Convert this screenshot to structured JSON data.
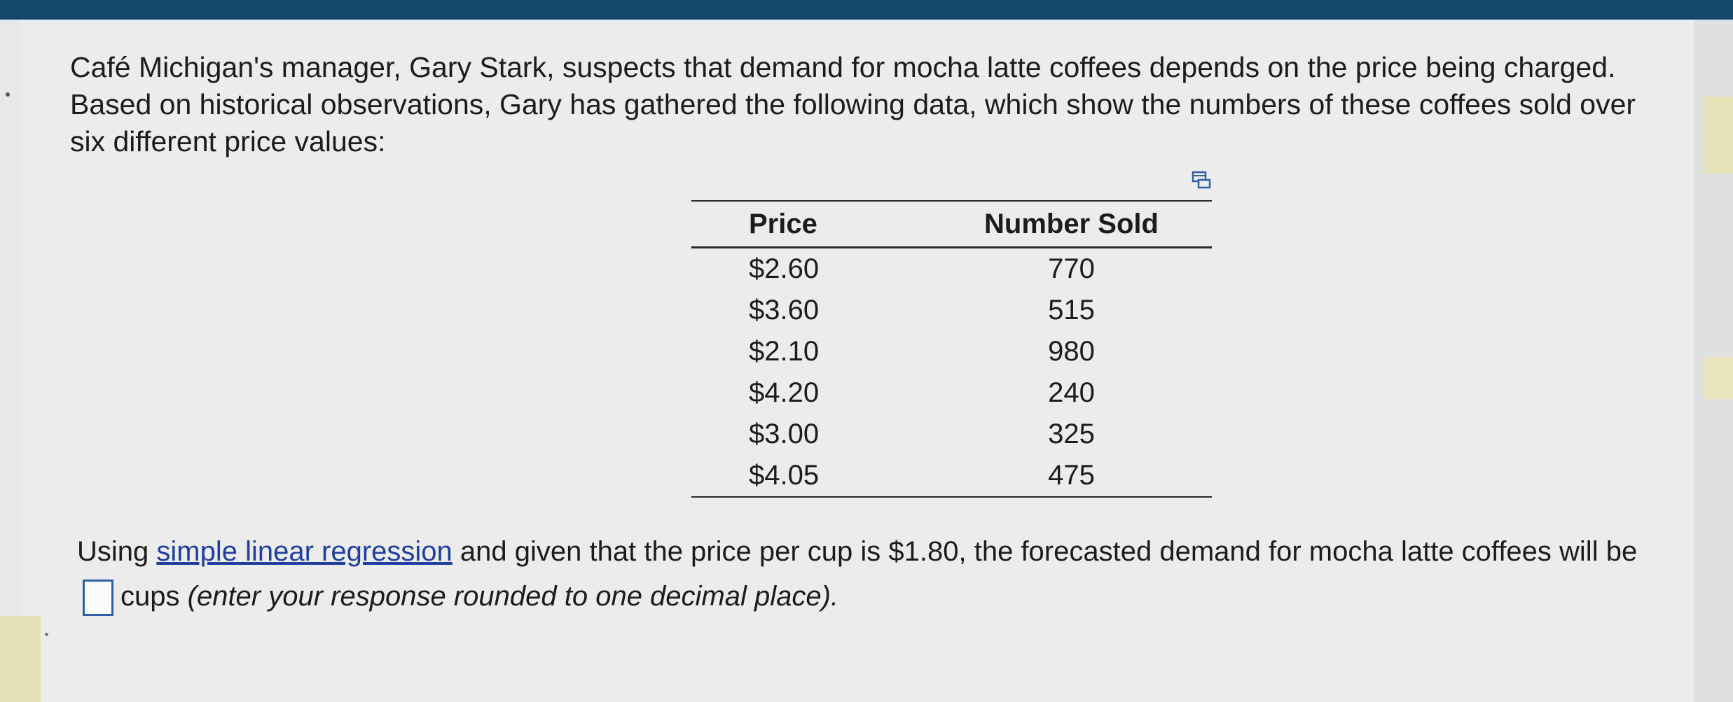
{
  "problem": {
    "intro": "Café Michigan's manager, Gary Stark, suspects that demand for mocha latte coffees depends on the price being charged.  Based on historical observations, Gary has gathered the following data, which show the numbers of these coffees sold over six different price values:",
    "table": {
      "headers": [
        "Price",
        "Number Sold"
      ],
      "rows": [
        [
          "$2.60",
          "770"
        ],
        [
          "$3.60",
          "515"
        ],
        [
          "$2.10",
          "980"
        ],
        [
          "$4.20",
          "240"
        ],
        [
          "$3.00",
          "325"
        ],
        [
          "$4.05",
          "475"
        ]
      ]
    },
    "question": {
      "prefix": "Using ",
      "link_text": "simple linear regression",
      "middle": " and given that the price per cup is $1.80, the forecasted demand for mocha latte coffees will be",
      "answer_value": "",
      "unit": "cups",
      "instruction": "(enter your response rounded to one decimal place)."
    }
  },
  "colors": {
    "top_bar": "#14486b",
    "link": "#1f3fa0",
    "input_border": "#2f5fa8"
  },
  "icons": {
    "table_icon": "copy-table-icon"
  }
}
